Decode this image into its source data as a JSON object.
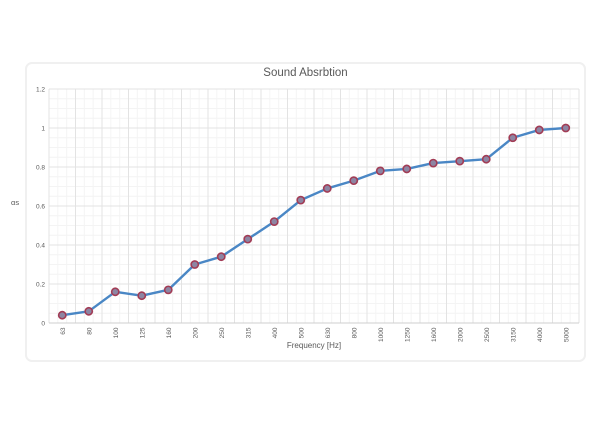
{
  "chart_data": {
    "type": "line",
    "title": "Sound Absrbtion",
    "xlabel": "Frequency [Hz]",
    "ylabel": "αs",
    "categories": [
      "63",
      "80",
      "100",
      "125",
      "160",
      "200",
      "250",
      "315",
      "400",
      "500",
      "630",
      "800",
      "1000",
      "1250",
      "1600",
      "2000",
      "2500",
      "3150",
      "4000",
      "5000"
    ],
    "values": [
      0.04,
      0.06,
      0.16,
      0.14,
      0.17,
      0.3,
      0.34,
      0.43,
      0.52,
      0.63,
      0.69,
      0.73,
      0.78,
      0.79,
      0.82,
      0.83,
      0.84,
      0.95,
      0.99,
      1.0
    ],
    "ylim": [
      0,
      1.2
    ],
    "y_major_step": 0.2,
    "y_minor_step": 0.05,
    "y_tick_labels": [
      "0",
      "0.2",
      "0.4",
      "0.6",
      "0.8",
      "1",
      "1.2"
    ],
    "grid": true,
    "legend_position": "none",
    "line_color": "#4a87c5",
    "marker_fill": "#8d85a3",
    "marker_stroke": "#a23c55",
    "grid_major_color": "#e3e3e3",
    "grid_minor_color": "#f4f4f4",
    "axis_line_color": "#cfcfcf",
    "text_color": "#595959"
  }
}
